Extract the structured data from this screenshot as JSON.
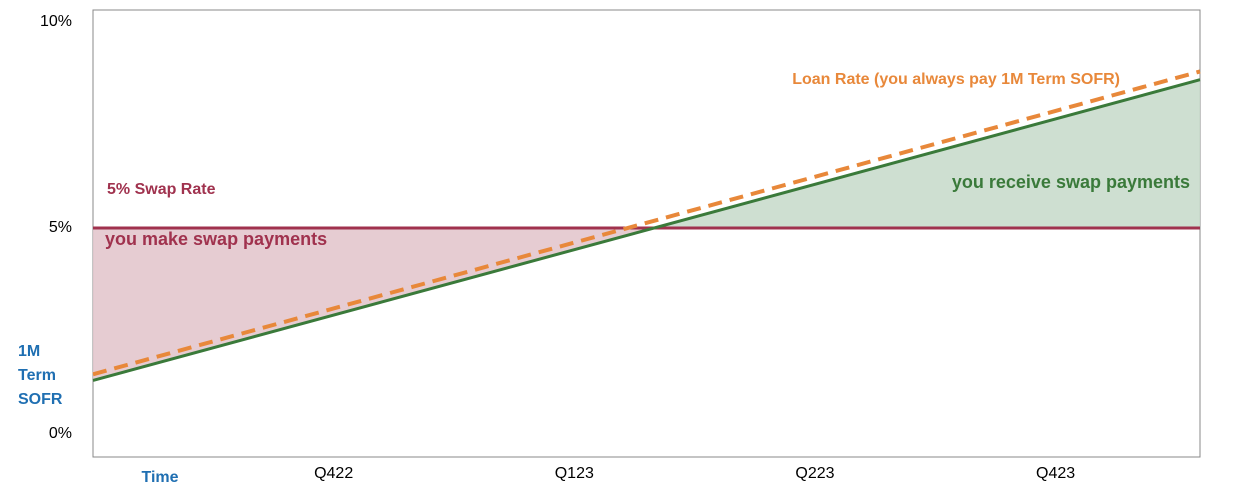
{
  "chart_data": {
    "type": "line",
    "y_label": "1M Term SOFR",
    "x_label": "Time",
    "x": [
      0,
      4.6
    ],
    "xlim": [
      0,
      4.6
    ],
    "xticks": [
      {
        "value": 1,
        "label": "Q422"
      },
      {
        "value": 2,
        "label": "Q123"
      },
      {
        "value": 3,
        "label": "Q223"
      },
      {
        "value": 4,
        "label": "Q423"
      }
    ],
    "ylim": [
      0,
      10
    ],
    "yticks": [
      {
        "value": 0,
        "label": "0%"
      },
      {
        "value": 5,
        "label": "5%"
      },
      {
        "value": 10,
        "label": "10%"
      }
    ],
    "grid": false,
    "series": [
      {
        "name": "5% Swap Rate",
        "color": "#a0324e",
        "values": [
          5,
          5
        ]
      },
      {
        "name": "Loan Rate (you always pay 1M Term SOFR)",
        "color": "#e8883a",
        "dashed": true,
        "values": [
          1.45,
          8.8
        ]
      },
      {
        "name": "1M Term SOFR",
        "color": "#3a7a3a",
        "values": [
          1.3,
          8.6
        ]
      }
    ],
    "annotations": [
      "you make swap payments",
      "you receive swap payments"
    ]
  }
}
